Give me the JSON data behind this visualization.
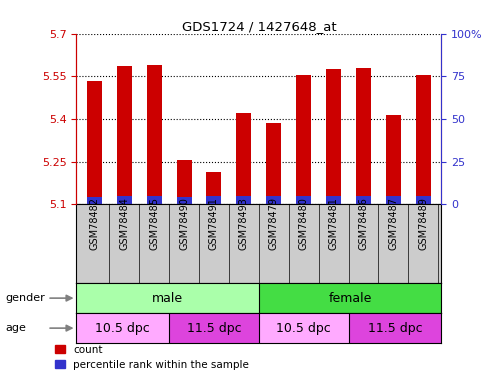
{
  "title": "GDS1724 / 1427648_at",
  "samples": [
    "GSM78482",
    "GSM78484",
    "GSM78485",
    "GSM78490",
    "GSM78491",
    "GSM78493",
    "GSM78479",
    "GSM78480",
    "GSM78481",
    "GSM78486",
    "GSM78487",
    "GSM78489"
  ],
  "count_values": [
    5.535,
    5.585,
    5.59,
    5.255,
    5.215,
    5.42,
    5.385,
    5.555,
    5.575,
    5.58,
    5.415,
    5.555
  ],
  "percentile_values": [
    5.125,
    5.13,
    5.128,
    5.125,
    5.128,
    5.128,
    5.128,
    5.128,
    5.128,
    5.128,
    5.128,
    5.128
  ],
  "ymin": 5.1,
  "ymax": 5.7,
  "yticks_left": [
    5.1,
    5.25,
    5.4,
    5.55,
    5.7
  ],
  "ytick_labels_left": [
    "5.1",
    "5.25",
    "5.4",
    "5.55",
    "5.7"
  ],
  "yticks_right": [
    0,
    25,
    50,
    75,
    100
  ],
  "ytick_labels_right": [
    "0",
    "25",
    "50",
    "75",
    "100%"
  ],
  "bar_color_red": "#CC0000",
  "bar_color_blue": "#3333CC",
  "bar_width": 0.5,
  "gender_male_color": "#AAFFAA",
  "gender_female_color": "#44DD44",
  "age_light_color": "#FFAAFF",
  "age_dark_color": "#DD44DD",
  "xlabel_bg_color": "#CCCCCC",
  "left_axis_color": "#CC0000",
  "right_axis_color": "#3333CC",
  "legend_items": [
    {
      "label": "count",
      "color": "#CC0000"
    },
    {
      "label": "percentile rank within the sample",
      "color": "#3333CC"
    }
  ]
}
